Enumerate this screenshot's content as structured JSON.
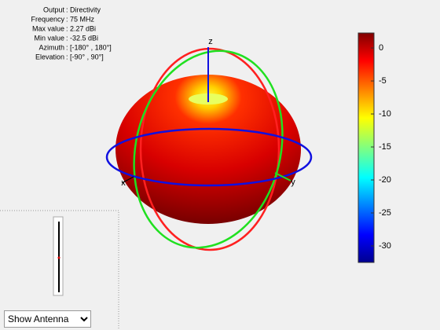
{
  "info": {
    "rows": [
      {
        "label": "Output",
        "value": ": Directivity"
      },
      {
        "label": "Frequency",
        "value": ": 75 MHz"
      },
      {
        "label": "Max value",
        "value": ": 2.27 dBi"
      },
      {
        "label": "Min value",
        "value": ": -32.5 dBi"
      },
      {
        "label": "Azimuth",
        "value": ": [-180° , 180°]"
      },
      {
        "label": "Elevation",
        "value": ": [-90° , 90°]"
      }
    ]
  },
  "colorbar": {
    "clim": [
      -32.5,
      2.27
    ],
    "ticks": [
      0,
      -5,
      -10,
      -15,
      -20,
      -25,
      -30
    ]
  },
  "axes": {
    "z": "z",
    "x": "x",
    "y": "y"
  },
  "control": {
    "option": "Show Antenna"
  }
}
